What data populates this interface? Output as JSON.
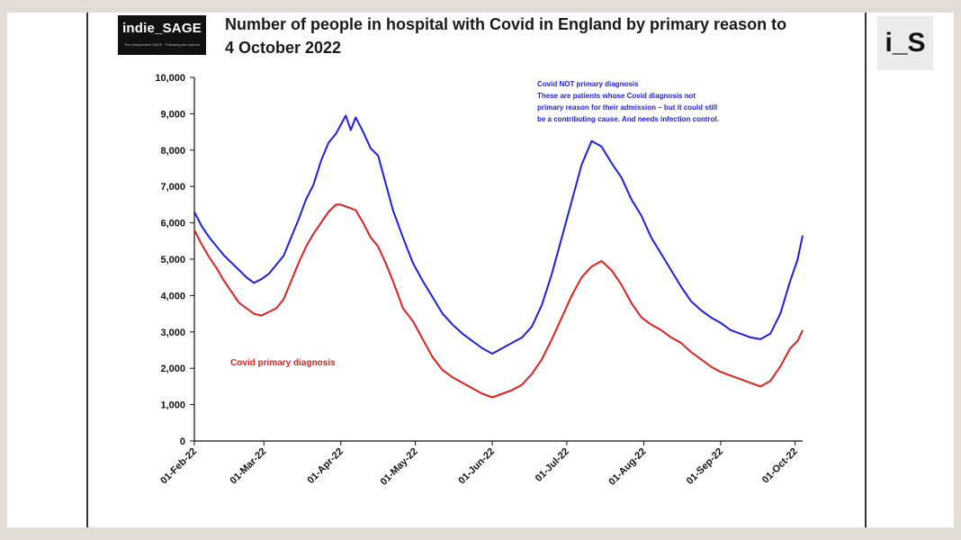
{
  "header": {
    "logo_text": "indie_SAGE",
    "logo_subtext": "The Independent SAGE · Following the science",
    "badge": "i_S"
  },
  "chart_data": {
    "type": "line",
    "title_lines": [
      "Number of people in hospital with Covid in England by primary reason to",
      "4 October 2022"
    ],
    "xlabel": "",
    "ylabel": "",
    "ylim": [
      0,
      10000
    ],
    "yticks": [
      0,
      1000,
      2000,
      3000,
      4000,
      5000,
      6000,
      7000,
      8000,
      9000,
      10000
    ],
    "ytick_labels": [
      "0",
      "1,000",
      "2,000",
      "3,000",
      "4,000",
      "5,000",
      "6,000",
      "7,000",
      "8,000",
      "9,000",
      "10,000"
    ],
    "xlim_day": [
      0,
      245
    ],
    "xticks": [
      {
        "label": "01-Feb-22",
        "day": 0
      },
      {
        "label": "01-Mar-22",
        "day": 28
      },
      {
        "label": "01-Apr-22",
        "day": 59
      },
      {
        "label": "01-May-22",
        "day": 89
      },
      {
        "label": "01-Jun-22",
        "day": 120
      },
      {
        "label": "01-Jul-22",
        "day": 150
      },
      {
        "label": "01-Aug-22",
        "day": 181
      },
      {
        "label": "01-Sep-22",
        "day": 212
      },
      {
        "label": "01-Oct-22",
        "day": 242
      }
    ],
    "colors": {
      "total": "#1f1fe0",
      "primary": "#e01f1f"
    },
    "series": [
      {
        "name": "Covid NOT primary diagnosis",
        "color": "#1f1fe0",
        "points": [
          [
            0,
            6300
          ],
          [
            3,
            5900
          ],
          [
            6,
            5600
          ],
          [
            9,
            5350
          ],
          [
            12,
            5100
          ],
          [
            15,
            4900
          ],
          [
            18,
            4700
          ],
          [
            21,
            4500
          ],
          [
            24,
            4350
          ],
          [
            27,
            4450
          ],
          [
            30,
            4600
          ],
          [
            33,
            4850
          ],
          [
            36,
            5100
          ],
          [
            39,
            5600
          ],
          [
            42,
            6100
          ],
          [
            45,
            6650
          ],
          [
            48,
            7050
          ],
          [
            51,
            7700
          ],
          [
            54,
            8200
          ],
          [
            57,
            8450
          ],
          [
            59,
            8700
          ],
          [
            61,
            8950
          ],
          [
            63,
            8550
          ],
          [
            65,
            8900
          ],
          [
            68,
            8500
          ],
          [
            71,
            8050
          ],
          [
            74,
            7850
          ],
          [
            77,
            7100
          ],
          [
            80,
            6350
          ],
          [
            84,
            5600
          ],
          [
            88,
            4900
          ],
          [
            92,
            4400
          ],
          [
            96,
            3950
          ],
          [
            100,
            3500
          ],
          [
            104,
            3200
          ],
          [
            108,
            2950
          ],
          [
            112,
            2750
          ],
          [
            116,
            2550
          ],
          [
            120,
            2400
          ],
          [
            124,
            2550
          ],
          [
            128,
            2700
          ],
          [
            132,
            2850
          ],
          [
            136,
            3150
          ],
          [
            140,
            3750
          ],
          [
            144,
            4600
          ],
          [
            148,
            5600
          ],
          [
            152,
            6600
          ],
          [
            156,
            7600
          ],
          [
            160,
            8250
          ],
          [
            164,
            8100
          ],
          [
            168,
            7650
          ],
          [
            172,
            7250
          ],
          [
            176,
            6650
          ],
          [
            180,
            6200
          ],
          [
            184,
            5600
          ],
          [
            188,
            5150
          ],
          [
            192,
            4700
          ],
          [
            196,
            4250
          ],
          [
            200,
            3850
          ],
          [
            204,
            3600
          ],
          [
            208,
            3400
          ],
          [
            212,
            3250
          ],
          [
            216,
            3050
          ],
          [
            220,
            2950
          ],
          [
            224,
            2850
          ],
          [
            228,
            2800
          ],
          [
            232,
            2950
          ],
          [
            236,
            3500
          ],
          [
            240,
            4400
          ],
          [
            243,
            5000
          ],
          [
            245,
            5650
          ]
        ]
      },
      {
        "name": "Covid primary diagnosis",
        "color": "#e01f1f",
        "points": [
          [
            0,
            5800
          ],
          [
            3,
            5400
          ],
          [
            6,
            5050
          ],
          [
            9,
            4750
          ],
          [
            12,
            4400
          ],
          [
            15,
            4100
          ],
          [
            18,
            3800
          ],
          [
            21,
            3650
          ],
          [
            24,
            3500
          ],
          [
            27,
            3450
          ],
          [
            30,
            3550
          ],
          [
            33,
            3650
          ],
          [
            36,
            3900
          ],
          [
            39,
            4400
          ],
          [
            42,
            4900
          ],
          [
            45,
            5350
          ],
          [
            48,
            5700
          ],
          [
            51,
            6000
          ],
          [
            54,
            6300
          ],
          [
            57,
            6500
          ],
          [
            59,
            6500
          ],
          [
            61,
            6450
          ],
          [
            63,
            6400
          ],
          [
            65,
            6350
          ],
          [
            68,
            6000
          ],
          [
            71,
            5600
          ],
          [
            74,
            5350
          ],
          [
            77,
            4900
          ],
          [
            80,
            4400
          ],
          [
            84,
            3650
          ],
          [
            88,
            3300
          ],
          [
            92,
            2800
          ],
          [
            96,
            2300
          ],
          [
            100,
            1950
          ],
          [
            104,
            1750
          ],
          [
            108,
            1600
          ],
          [
            112,
            1450
          ],
          [
            116,
            1300
          ],
          [
            120,
            1200
          ],
          [
            124,
            1300
          ],
          [
            128,
            1400
          ],
          [
            132,
            1550
          ],
          [
            136,
            1850
          ],
          [
            140,
            2250
          ],
          [
            144,
            2800
          ],
          [
            148,
            3400
          ],
          [
            152,
            4000
          ],
          [
            156,
            4500
          ],
          [
            160,
            4800
          ],
          [
            164,
            4950
          ],
          [
            168,
            4700
          ],
          [
            172,
            4300
          ],
          [
            176,
            3800
          ],
          [
            180,
            3400
          ],
          [
            184,
            3200
          ],
          [
            188,
            3050
          ],
          [
            192,
            2850
          ],
          [
            196,
            2700
          ],
          [
            200,
            2450
          ],
          [
            204,
            2250
          ],
          [
            208,
            2050
          ],
          [
            212,
            1900
          ],
          [
            216,
            1800
          ],
          [
            220,
            1700
          ],
          [
            224,
            1600
          ],
          [
            228,
            1500
          ],
          [
            232,
            1650
          ],
          [
            236,
            2050
          ],
          [
            240,
            2550
          ],
          [
            243,
            2750
          ],
          [
            245,
            3050
          ]
        ]
      }
    ],
    "annotations": {
      "blue_lines": [
        "Covid NOT primary diagnosis",
        "These are patients whose Covid diagnosis not",
        "primary reason for their admission – but it could still",
        "be a contributing cause. And needs infection control."
      ],
      "red_label": "Covid primary diagnosis"
    }
  }
}
